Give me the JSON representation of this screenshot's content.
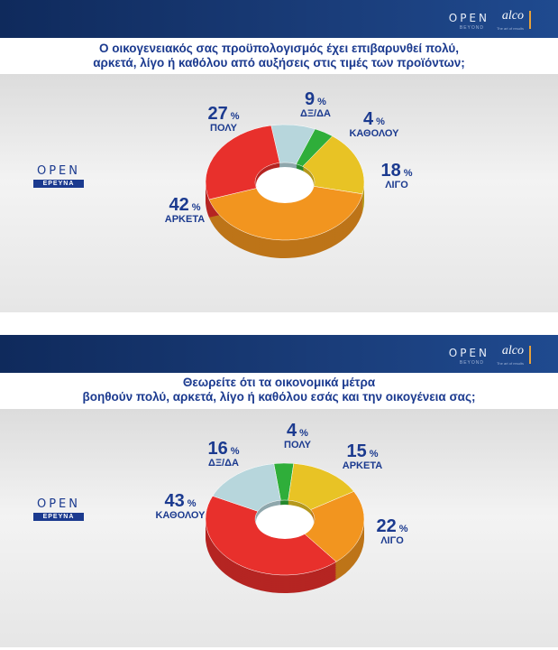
{
  "panels": [
    {
      "brand": {
        "open_word": "OPEN",
        "open_sub": "BEYOND",
        "alco": "alco",
        "alco_sub": "The art of results"
      },
      "logo": {
        "word": "OPEN",
        "tag": "ΕΡΕΥΝΑ"
      },
      "title_line1": "Ο οικογενειακός σας προϋπολογισμός έχει επιβαρυνθεί πολύ,",
      "title_line2": "αρκετά, λίγο ή καθόλου από αυξήσεις στις τιμές των προϊόντων;",
      "chart_data": {
        "type": "pie",
        "unit": "%",
        "categories": [
          "ΔΞ/ΔΑ",
          "ΚΑΘΟΛΟΥ",
          "ΛΙΓΟ",
          "ΑΡΚΕΤΑ",
          "ΠΟΛΥ"
        ],
        "values": [
          9,
          4,
          18,
          42,
          27
        ],
        "colors": [
          "#b7d6dc",
          "#2fae3a",
          "#e8c325",
          "#f2951f",
          "#e8302c"
        ]
      }
    },
    {
      "brand": {
        "open_word": "OPEN",
        "open_sub": "BEYOND",
        "alco": "alco",
        "alco_sub": "The art of results"
      },
      "logo": {
        "word": "OPEN",
        "tag": "ΕΡΕΥΝΑ"
      },
      "title_line1": "Θεωρείτε ότι τα οικονομικά μέτρα",
      "title_line2": "βοηθούν πολύ, αρκετά, λίγο ή καθόλου εσάς και την οικογένεια σας;",
      "chart_data": {
        "type": "pie",
        "unit": "%",
        "categories": [
          "ΠΟΛΥ",
          "ΑΡΚΕΤΑ",
          "ΛΙΓΟ",
          "ΚΑΘΟΛΟΥ",
          "ΔΞ/ΔΑ"
        ],
        "values": [
          4,
          15,
          22,
          43,
          16
        ],
        "colors": [
          "#2fae3a",
          "#e8c325",
          "#f2951f",
          "#e8302c",
          "#b7d6dc"
        ]
      }
    }
  ]
}
